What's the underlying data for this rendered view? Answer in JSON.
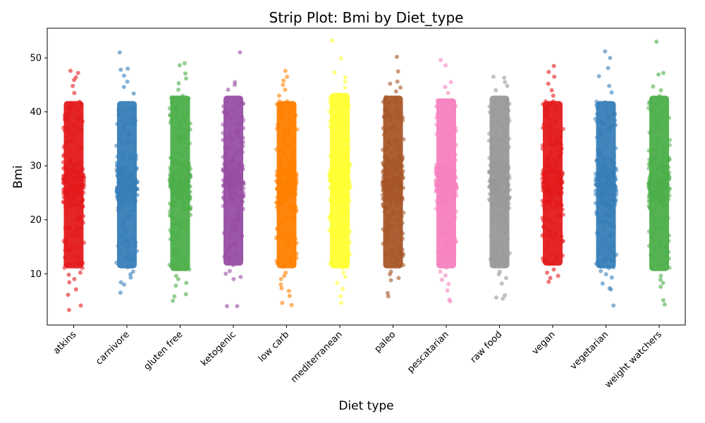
{
  "chart_data": {
    "type": "scatter",
    "title": "Strip Plot: Bmi by Diet_type",
    "xlabel": "Diet type",
    "ylabel": "Bmi",
    "ylim": [
      0.5,
      55.5
    ],
    "yticks": [
      10,
      20,
      30,
      40,
      50
    ],
    "grid": false,
    "categories": [
      "atkins",
      "carnivore",
      "gluten free",
      "ketogenic",
      "low carb",
      "mediterranean",
      "paleo",
      "pescatarian",
      "raw food",
      "vegan",
      "vegetarian",
      "weight watchers"
    ],
    "colors": [
      "#e41a1c",
      "#377eb8",
      "#4daf4a",
      "#984ea3",
      "#ff7f00",
      "#ffff33",
      "#a65628",
      "#f781bf",
      "#999999",
      "#e41a1c",
      "#377eb8",
      "#4daf4a"
    ],
    "series": [
      {
        "category": "atkins",
        "dense_range": [
          11,
          42
        ],
        "outliers": [
          3.3,
          4.1,
          6.1,
          7.1,
          8.4,
          9.0,
          9.8,
          10.2,
          43.5,
          44.8,
          45.9,
          46.4,
          47.2,
          47.6
        ]
      },
      {
        "category": "carnivore",
        "dense_range": [
          11,
          42
        ],
        "outliers": [
          6.5,
          8.0,
          8.4,
          9.3,
          9.9,
          10.4,
          43.4,
          44.6,
          45.6,
          46.7,
          47.8,
          48.0,
          51.0
        ]
      },
      {
        "category": "gluten free",
        "dense_range": [
          10.5,
          43
        ],
        "outliers": [
          5.0,
          5.8,
          6.2,
          7.8,
          8.3,
          9.0,
          9.6,
          44.1,
          45.3,
          46.2,
          47.1,
          48.6,
          49.0
        ]
      },
      {
        "category": "ketogenic",
        "dense_range": [
          11.5,
          43
        ],
        "outliers": [
          4.0,
          4.0,
          9.0,
          9.4,
          10.0,
          10.5,
          44.1,
          45.0,
          45.5,
          51.0
        ]
      },
      {
        "category": "low carb",
        "dense_range": [
          11,
          42
        ],
        "outliers": [
          4.2,
          4.6,
          5.9,
          6.8,
          7.3,
          8.0,
          9.0,
          9.6,
          10.2,
          43.0,
          44.1,
          45.0,
          45.8,
          46.5,
          47.6
        ]
      },
      {
        "category": "mediterranean",
        "dense_range": [
          11,
          43.5
        ],
        "outliers": [
          4.6,
          5.8,
          7.2,
          8.3,
          9.4,
          10.2,
          44.5,
          45.6,
          46.4,
          47.3,
          49.9,
          53.2
        ]
      },
      {
        "category": "paleo",
        "dense_range": [
          11,
          43
        ],
        "outliers": [
          5.8,
          6.4,
          8.8,
          9.2,
          9.9,
          10.4,
          43.8,
          44.5,
          45.2,
          45.6,
          47.5,
          50.2
        ]
      },
      {
        "category": "pescatarian",
        "dense_range": [
          11,
          42.5
        ],
        "outliers": [
          4.9,
          5.2,
          6.9,
          8.1,
          8.9,
          9.7,
          10.4,
          43.5,
          44.6,
          45.5,
          48.6,
          49.6
        ]
      },
      {
        "category": "raw food",
        "dense_range": [
          11,
          43
        ],
        "outliers": [
          5.4,
          5.6,
          6.0,
          8.2,
          9.2,
          9.9,
          10.4,
          44.0,
          44.8,
          45.5,
          46.3,
          46.5
        ]
      },
      {
        "category": "vegan",
        "dense_range": [
          11.5,
          42
        ],
        "outliers": [
          8.5,
          9.2,
          9.6,
          10.2,
          10.8,
          43.0,
          44.0,
          45.2,
          46.5,
          47.4,
          48.5
        ]
      },
      {
        "category": "vegetarian",
        "dense_range": [
          11,
          42
        ],
        "outliers": [
          4.1,
          7.1,
          7.3,
          8.2,
          9.3,
          9.9,
          10.5,
          43.6,
          44.8,
          46.6,
          48.1,
          50.0,
          51.2
        ]
      },
      {
        "category": "weight watchers",
        "dense_range": [
          10.5,
          43
        ],
        "outliers": [
          4.3,
          5.1,
          7.6,
          8.3,
          8.9,
          9.6,
          44.0,
          44.7,
          46.9,
          47.2,
          53.0
        ]
      }
    ]
  }
}
